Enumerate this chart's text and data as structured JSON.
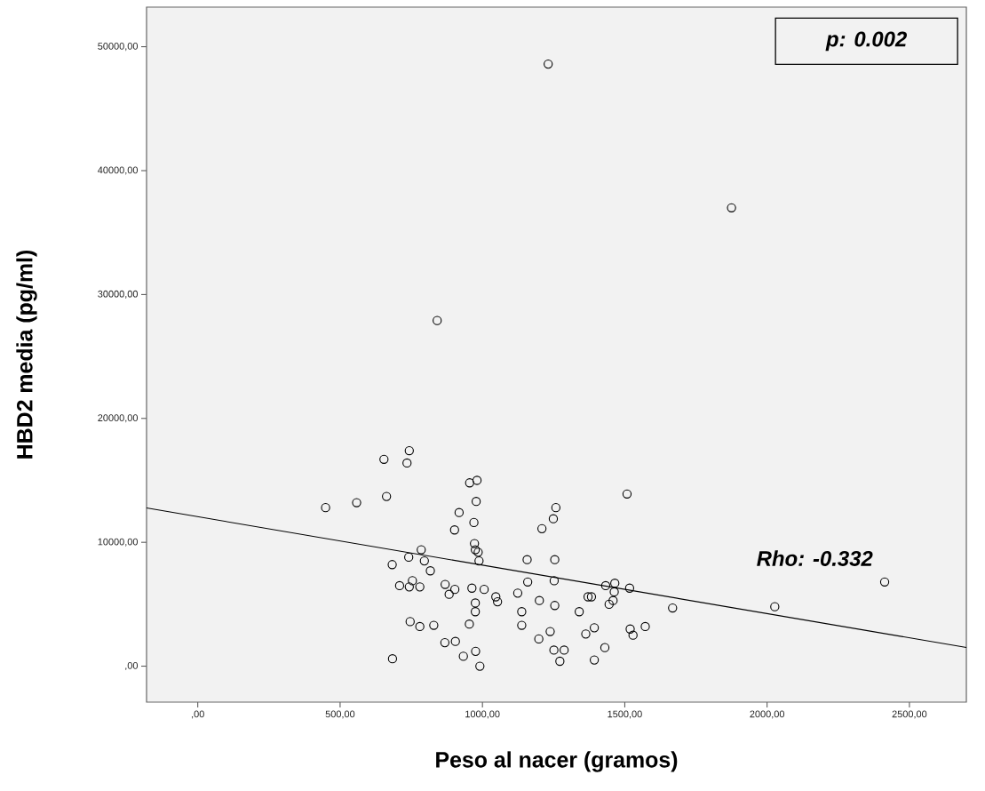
{
  "chart_data": {
    "type": "scatter",
    "xlabel": "Peso al nacer (gramos)",
    "ylabel": "HBD2 media (pg/ml)",
    "annotations": [
      "p: 0.002",
      "Rho: -0.332"
    ],
    "xlim": [
      -180,
      2700
    ],
    "ylim": [
      -2900,
      53200
    ],
    "xticks": [
      {
        "value": 0,
        "label": ",00"
      },
      {
        "value": 500,
        "label": "500,00"
      },
      {
        "value": 1000,
        "label": "1000,00"
      },
      {
        "value": 1500,
        "label": "1500,00"
      },
      {
        "value": 2000,
        "label": "2000,00"
      },
      {
        "value": 2500,
        "label": "2500,00"
      }
    ],
    "yticks": [
      {
        "value": 0,
        "label": ",00"
      },
      {
        "value": 10000,
        "label": "10000,00"
      },
      {
        "value": 20000,
        "label": "20000,00"
      },
      {
        "value": 30000,
        "label": "30000,00"
      },
      {
        "value": 40000,
        "label": "40000,00"
      },
      {
        "value": 50000,
        "label": "50000,00"
      }
    ],
    "grid": false,
    "marker": "circle",
    "series": [
      {
        "color": "#000000",
        "x": [
          743,
          654,
          735,
          955,
          981,
          663,
          449,
          558,
          978,
          918,
          970,
          902,
          1258,
          1249,
          1209,
          1508,
          785,
          741,
          796,
          683,
          817,
          972,
          975,
          985,
          988,
          1157,
          1254,
          754,
          709,
          743,
          780,
          869,
          903,
          883,
          963,
          1006,
          1047,
          1053,
          975,
          975,
          1159,
          1252,
          1124,
          1200,
          1254,
          1138,
          1371,
          1383,
          1340,
          1433,
          1465,
          1463,
          1459,
          1445,
          1517,
          746,
          780,
          829,
          954,
          1138,
          868,
          905,
          933,
          976,
          991,
          684,
          1198,
          1238,
          1251,
          1287,
          1272,
          1363,
          1393,
          1430,
          1393,
          1519,
          1529,
          1572,
          1668,
          2027,
          2413,
          1231,
          1875,
          841
        ],
        "values": [
          17400,
          16700,
          16400,
          14800,
          15000,
          13700,
          12800,
          13200,
          13300,
          12400,
          11600,
          11000,
          12800,
          11900,
          11100,
          13900,
          9400,
          8800,
          8500,
          8200,
          7700,
          9900,
          9400,
          9200,
          8500,
          8600,
          8600,
          6900,
          6500,
          6400,
          6400,
          6600,
          6200,
          5800,
          6300,
          6200,
          5600,
          5200,
          5100,
          4400,
          6800,
          6900,
          5900,
          5300,
          4900,
          4400,
          5600,
          5600,
          4400,
          6500,
          6700,
          6000,
          5300,
          5000,
          6300,
          3600,
          3200,
          3300,
          3400,
          3300,
          1900,
          2000,
          800,
          1200,
          0,
          600,
          2200,
          2800,
          1300,
          1300,
          400,
          2600,
          3100,
          1500,
          500,
          3000,
          2500,
          3200,
          4700,
          4800,
          6800,
          48600,
          37000,
          27900
        ]
      },
      {
        "type": "line",
        "color": "#000000",
        "marker": "none",
        "line_style": "solid",
        "x": [
          -180,
          2700
        ],
        "values": [
          12770,
          1510
        ]
      }
    ]
  }
}
